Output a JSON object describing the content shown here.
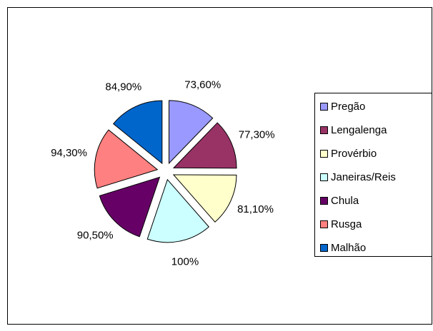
{
  "chart_data": {
    "type": "pie",
    "categories": [
      "Pregão",
      "Lengalenga",
      "Provérbio",
      "Janeiras/Reis",
      "Chula",
      "Rusga",
      "Malhão"
    ],
    "values": [
      73.6,
      77.3,
      81.1,
      100,
      90.5,
      94.3,
      84.9
    ],
    "value_labels": [
      "73,60%",
      "77,30%",
      "81,10%",
      "100%",
      "90,50%",
      "94,30%",
      "84,90%"
    ],
    "colors": [
      "#9999FF",
      "#993366",
      "#FFFFCC",
      "#CCFFFF",
      "#660066",
      "#FF8080",
      "#0066CC"
    ],
    "exploded": true,
    "legend": "right"
  }
}
